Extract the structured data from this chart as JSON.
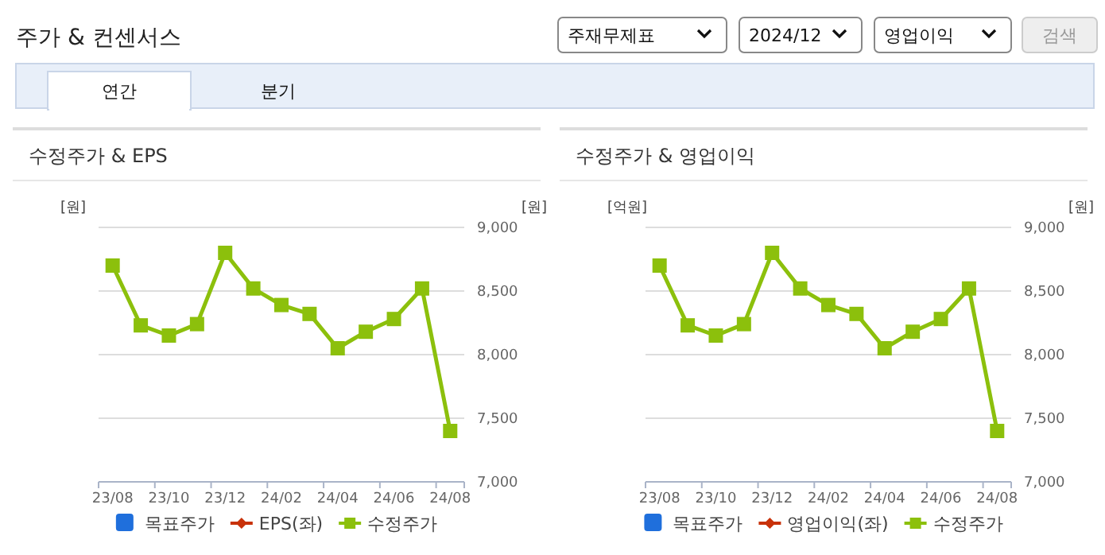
{
  "chart_data": [
    {
      "type": "other",
      "title": "주가 & 컨센서스",
      "annotations": [
        "주재무제표",
        "2024/12",
        "영업이익",
        "검색",
        "연간",
        "분기"
      ]
    },
    {
      "type": "line",
      "title": "수정주가 & EPS",
      "ylabel": "[원]",
      "y2label": "[원]",
      "categories": [
        "23/08",
        null,
        "23/10",
        null,
        "23/12",
        null,
        "24/02",
        null,
        "24/04",
        null,
        "24/06",
        null,
        "24/08"
      ],
      "series": [
        {
          "name": "목표주가",
          "type": "bar",
          "color": "#1f6fdc",
          "values": [
            null,
            null,
            null,
            null,
            null,
            null,
            null,
            null,
            null,
            null,
            null,
            null,
            null
          ]
        },
        {
          "name": "EPS(좌)",
          "type": "line",
          "marker": "diamond",
          "color": "#c8320a",
          "values": [
            null,
            null,
            null,
            null,
            null,
            null,
            null,
            null,
            null,
            null,
            null,
            null,
            null
          ]
        },
        {
          "name": "수정주가",
          "type": "line",
          "marker": "square",
          "axis": "y2",
          "color": "#8cc00c",
          "values": [
            8700,
            8230,
            8150,
            8240,
            8800,
            8520,
            8390,
            8320,
            8050,
            8180,
            8280,
            8520,
            7400
          ]
        }
      ],
      "y2lim": [
        7000,
        9000
      ],
      "y2ticks": [
        {
          "value": 7000,
          "label": "7,000"
        },
        {
          "value": 7500,
          "label": "7,500"
        },
        {
          "value": 8000,
          "label": "8,000"
        },
        {
          "value": 8500,
          "label": "8,500"
        },
        {
          "value": 9000,
          "label": "9,000"
        }
      ],
      "grid": "y",
      "legend": "bottom"
    },
    {
      "type": "line",
      "title": "수정주가 & 영업이익",
      "ylabel": "[억원]",
      "y2label": "[원]",
      "categories": [
        "23/08",
        null,
        "23/10",
        null,
        "23/12",
        null,
        "24/02",
        null,
        "24/04",
        null,
        "24/06",
        null,
        "24/08"
      ],
      "series": [
        {
          "name": "목표주가",
          "type": "bar",
          "color": "#1f6fdc",
          "values": [
            null,
            null,
            null,
            null,
            null,
            null,
            null,
            null,
            null,
            null,
            null,
            null,
            null
          ]
        },
        {
          "name": "영업이익(좌)",
          "type": "line",
          "marker": "diamond",
          "color": "#c8320a",
          "values": [
            null,
            null,
            null,
            null,
            null,
            null,
            null,
            null,
            null,
            null,
            null,
            null,
            null
          ]
        },
        {
          "name": "수정주가",
          "type": "line",
          "marker": "square",
          "axis": "y2",
          "color": "#8cc00c",
          "values": [
            8700,
            8230,
            8150,
            8240,
            8800,
            8520,
            8390,
            8320,
            8050,
            8180,
            8280,
            8520,
            7400
          ]
        }
      ],
      "y2lim": [
        7000,
        9000
      ],
      "y2ticks": [
        {
          "value": 7000,
          "label": "7,000"
        },
        {
          "value": 7500,
          "label": "7,500"
        },
        {
          "value": 8000,
          "label": "8,000"
        },
        {
          "value": 8500,
          "label": "8,500"
        },
        {
          "value": 9000,
          "label": "9,000"
        }
      ],
      "grid": "y",
      "legend": "bottom"
    }
  ]
}
